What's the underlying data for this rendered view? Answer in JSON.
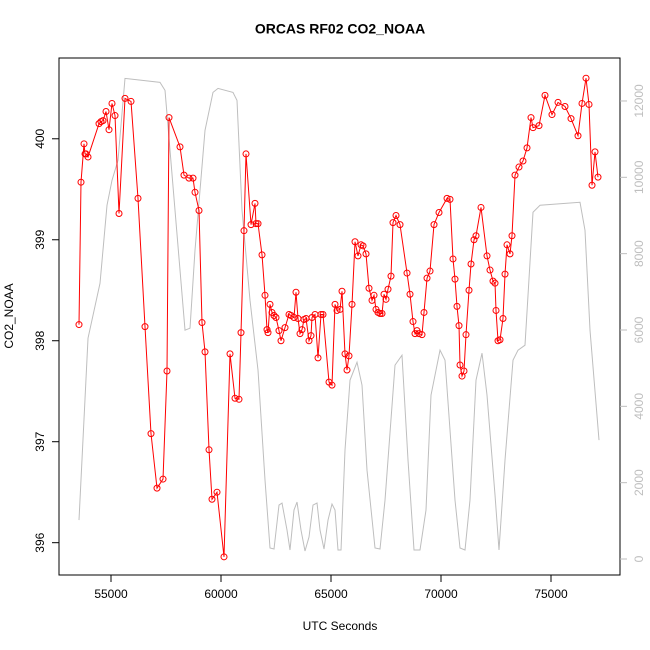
{
  "chart_data": {
    "type": "line",
    "title": "ORCAS RF02 CO2_NOAA",
    "xlabel": "UTC Seconds",
    "ylabel": "CO2_NOAA",
    "xlim": [
      52636,
      78136
    ],
    "xticks": [
      55000,
      60000,
      65000,
      70000,
      75000
    ],
    "ylim": [
      395.68,
      400.8
    ],
    "yticks": [
      396,
      397,
      398,
      399,
      400
    ],
    "y2lim": [
      -419,
      13126
    ],
    "y2ticks": [
      0,
      2000,
      4000,
      6000,
      8000,
      10000,
      12000
    ],
    "series": [
      {
        "color": "#ff0000",
        "markers": true,
        "x": [
          53545,
          53636,
          53773,
          53818,
          53864,
          53955,
          54455,
          54545,
          54636,
          54773,
          54909,
          55045,
          55182,
          55364,
          55636,
          55909,
          56227,
          56545,
          56818,
          57091,
          57364,
          57545,
          57636,
          58136,
          58318,
          58545,
          58727,
          58818,
          59000,
          59136,
          59273,
          59455,
          59591,
          59818,
          60136,
          60409,
          60636,
          60818,
          60909,
          61045,
          61136,
          61364,
          61545,
          61591,
          61682,
          61864,
          62000,
          62091,
          62136,
          62227,
          62318,
          62409,
          62500,
          62636,
          62727,
          62909,
          63091,
          63182,
          63318,
          63409,
          63500,
          63591,
          63682,
          63773,
          63864,
          64000,
          64091,
          64136,
          64273,
          64409,
          64545,
          64636,
          64909,
          65045,
          65182,
          65273,
          65409,
          65500,
          65636,
          65727,
          65818,
          65955,
          66091,
          66227,
          66364,
          66455,
          66591,
          66727,
          66864,
          66955,
          67045,
          67136,
          67227,
          67318,
          67409,
          67500,
          67591,
          67727,
          67818,
          67955,
          68136,
          68455,
          68591,
          68727,
          68818,
          68909,
          69000,
          69136,
          69227,
          69364,
          69500,
          69682,
          69909,
          70273,
          70409,
          70545,
          70636,
          70727,
          70818,
          70864,
          70955,
          71045,
          71136,
          71273,
          71364,
          71500,
          71591,
          71818,
          72091,
          72227,
          72364,
          72455,
          72500,
          72591,
          72682,
          72818,
          72909,
          73000,
          73136,
          73227,
          73364,
          73545,
          73727,
          73909,
          74091,
          74182,
          74455,
          74727,
          75045,
          75318,
          75636,
          75909,
          76227,
          76409,
          76591,
          76727,
          76864,
          77000,
          77136
        ],
        "values": [
          398.16,
          399.57,
          399.95,
          399.85,
          399.85,
          399.82,
          400.15,
          400.17,
          400.18,
          400.27,
          400.09,
          400.35,
          400.23,
          399.26,
          400.4,
          400.37,
          399.41,
          398.14,
          397.08,
          396.54,
          396.63,
          397.7,
          400.21,
          399.92,
          399.64,
          399.61,
          399.61,
          399.47,
          399.29,
          398.18,
          397.89,
          396.92,
          396.43,
          396.5,
          395.86,
          397.87,
          397.43,
          397.42,
          398.08,
          399.09,
          399.85,
          399.15,
          399.36,
          399.16,
          399.16,
          398.85,
          398.45,
          398.11,
          398.08,
          398.36,
          398.28,
          398.25,
          398.23,
          398.1,
          398.0,
          398.13,
          398.26,
          398.25,
          398.23,
          398.48,
          398.22,
          398.07,
          398.11,
          398.21,
          398.22,
          398.0,
          398.05,
          398.23,
          398.26,
          397.83,
          398.26,
          398.26,
          397.59,
          397.56,
          398.36,
          398.3,
          398.31,
          398.49,
          397.87,
          397.71,
          397.85,
          398.36,
          398.98,
          398.84,
          398.95,
          398.94,
          398.86,
          398.52,
          398.4,
          398.45,
          398.31,
          398.28,
          398.27,
          398.27,
          398.46,
          398.41,
          398.51,
          398.64,
          399.17,
          399.24,
          399.15,
          398.67,
          398.46,
          398.19,
          398.07,
          398.1,
          398.07,
          398.06,
          398.28,
          398.62,
          398.69,
          399.15,
          399.27,
          399.41,
          399.4,
          398.81,
          398.61,
          398.34,
          398.15,
          397.76,
          397.65,
          397.7,
          398.06,
          398.5,
          398.76,
          399.0,
          399.04,
          399.32,
          398.84,
          398.7,
          398.59,
          398.57,
          398.3,
          398.0,
          398.01,
          398.22,
          398.66,
          398.95,
          398.86,
          399.04,
          399.64,
          399.72,
          399.78,
          399.91,
          400.21,
          400.11,
          400.13,
          400.43,
          400.24,
          400.36,
          400.32,
          400.2,
          400.03,
          400.35,
          400.6,
          400.34,
          399.54,
          399.87,
          399.62
        ]
      },
      {
        "color": "#bebebe",
        "axis": "y2",
        "x": [
          53545,
          53955,
          54500,
          54818,
          55045,
          55318,
          55636,
          57227,
          57455,
          57909,
          58364,
          58591,
          58818,
          59273,
          59636,
          59864,
          60545,
          60727,
          60955,
          61318,
          61682,
          62000,
          62227,
          62409,
          62636,
          62773,
          63000,
          63136,
          63318,
          63455,
          63636,
          63818,
          64000,
          64182,
          64364,
          64500,
          64682,
          64864,
          65045,
          65182,
          65318,
          65455,
          65636,
          65864,
          66182,
          66409,
          66636,
          67000,
          67227,
          67455,
          67909,
          68227,
          68500,
          68773,
          69045,
          69318,
          69545,
          69955,
          70182,
          70636,
          70864,
          71091,
          71318,
          71591,
          71864,
          72091,
          72455,
          72636,
          72909,
          73273,
          73500,
          73818,
          74182,
          74500,
          76318,
          76545,
          76773,
          77182
        ],
        "values": [
          1020,
          5785,
          7225,
          9267,
          9921,
          10445,
          12592,
          12487,
          12277,
          9136,
          5995,
          6047,
          8089,
          11230,
          12225,
          12330,
          12225,
          12016,
          9136,
          6780,
          4948,
          2068,
          288,
          262,
          1414,
          1466,
          759,
          236,
          1283,
          1492,
          759,
          209,
          576,
          1414,
          1466,
          759,
          262,
          1021,
          1440,
          1283,
          236,
          236,
          2853,
          4686,
          5157,
          4555,
          2330,
          288,
          262,
          1545,
          5079,
          5340,
          2592,
          236,
          236,
          1283,
          4293,
          5471,
          5209,
          1545,
          288,
          236,
          1545,
          4686,
          5393,
          4293,
          1675,
          236,
          2592,
          5209,
          5471,
          5602,
          9084,
          9267,
          9346,
          8613,
          5995,
          3115
        ]
      }
    ]
  }
}
